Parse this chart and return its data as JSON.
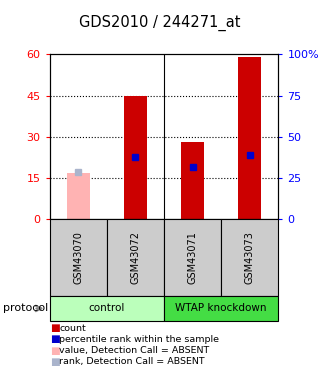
{
  "title": "GDS2010 / 244271_at",
  "samples": [
    "GSM43070",
    "GSM43072",
    "GSM43071",
    "GSM43073"
  ],
  "bar_values_red": [
    0,
    45,
    28,
    59
  ],
  "bar_values_pink": [
    17,
    0,
    0,
    0
  ],
  "blue_square_values": [
    29,
    38,
    32,
    39
  ],
  "blue_absent_color_values": [
    29,
    0,
    0,
    0
  ],
  "bar_color_red": "#cc0000",
  "bar_color_pink": "#ffb3b3",
  "blue_color": "#0000cc",
  "blue_absent_color": "#aab4cc",
  "ylim_left": [
    0,
    60
  ],
  "ylim_right": [
    0,
    100
  ],
  "yticks_left": [
    0,
    15,
    30,
    45,
    60
  ],
  "yticks_right": [
    0,
    25,
    50,
    75,
    100
  ],
  "ytick_labels_left": [
    "0",
    "15",
    "30",
    "45",
    "60"
  ],
  "ytick_labels_right": [
    "0",
    "25",
    "50",
    "75",
    "100%"
  ],
  "groups": [
    {
      "label": "control",
      "samples_idx": [
        0,
        1
      ],
      "color": "#bbffbb"
    },
    {
      "label": "WTAP knockdown",
      "samples_idx": [
        2,
        3
      ],
      "color": "#44dd44"
    }
  ],
  "protocol_label": "protocol",
  "legend_items": [
    {
      "color": "#cc0000",
      "label": "count"
    },
    {
      "color": "#0000cc",
      "label": "percentile rank within the sample"
    },
    {
      "color": "#ffb3b3",
      "label": "value, Detection Call = ABSENT"
    },
    {
      "color": "#aab4cc",
      "label": "rank, Detection Call = ABSENT"
    }
  ],
  "absent_sample_idx": 0,
  "grid_yticks": [
    15,
    30,
    45
  ],
  "bar_width": 0.4
}
